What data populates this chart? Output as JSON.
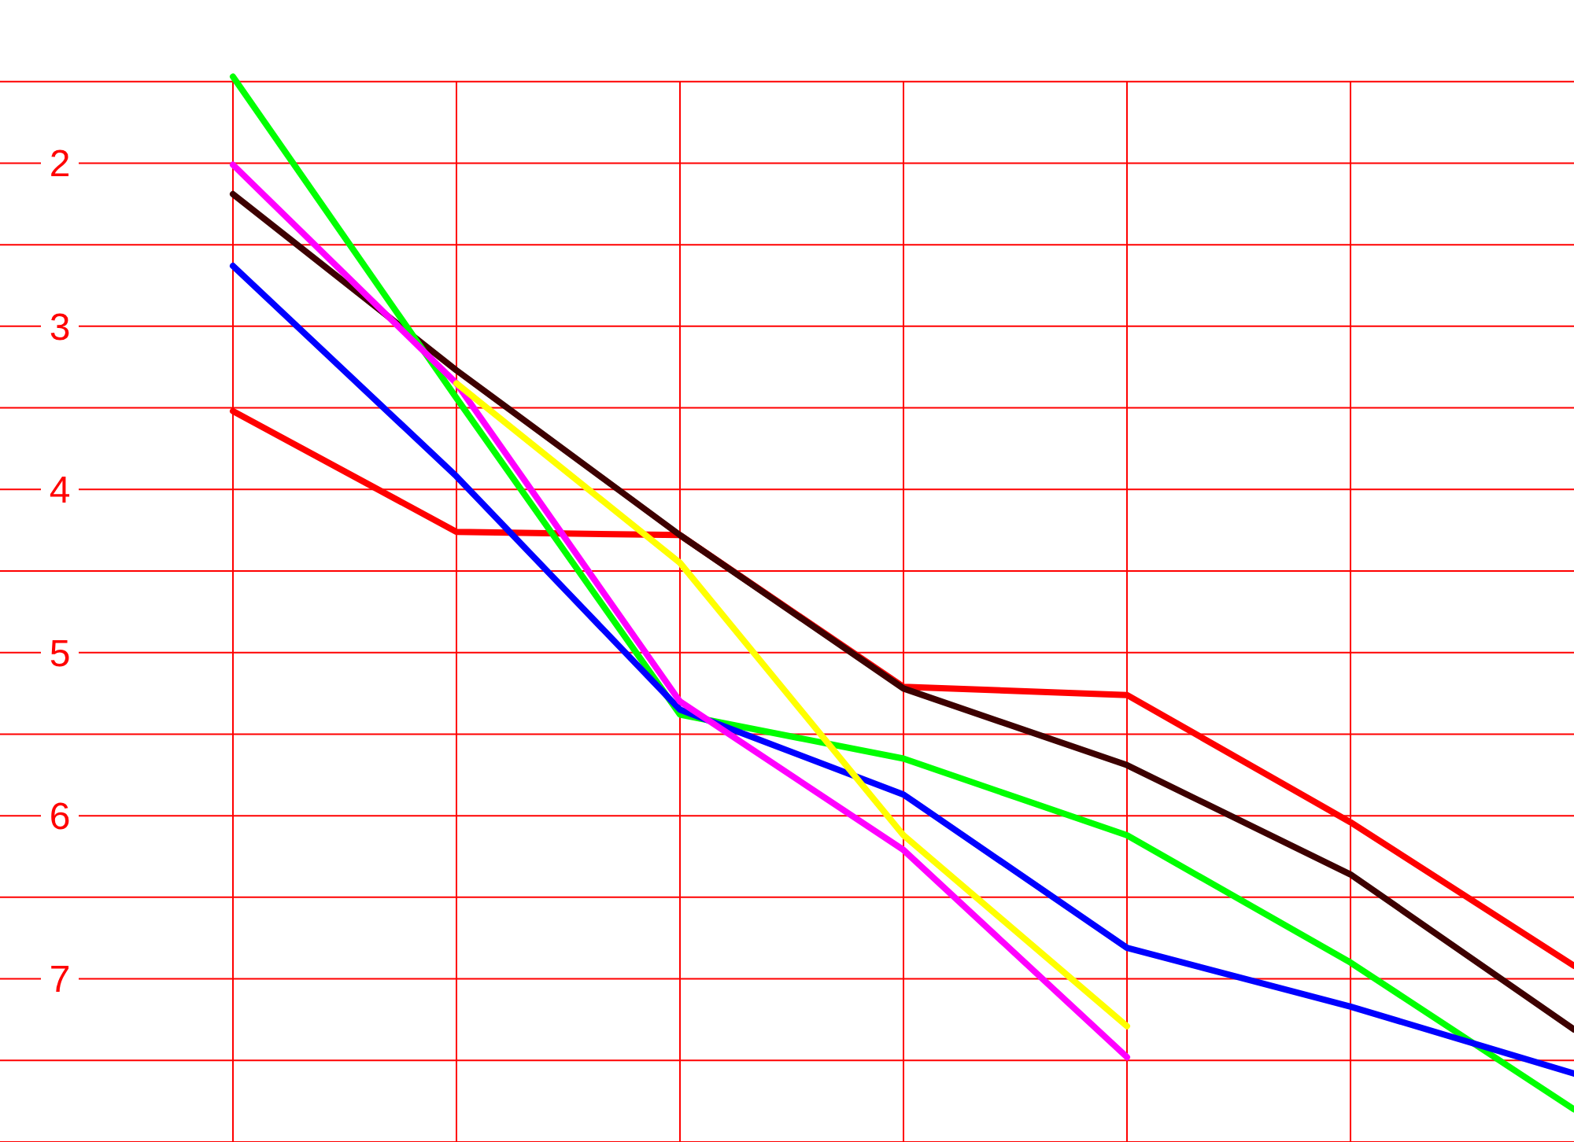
{
  "chart_data": {
    "type": "line",
    "categories": [
      null,
      null,
      null,
      null,
      null,
      null,
      null
    ],
    "ylim": [
      8,
      1
    ],
    "yticks": [
      {
        "value": 1.5,
        "label": null
      },
      2,
      {
        "value": 2.5,
        "label": null
      },
      3,
      {
        "value": 3.5,
        "label": null
      },
      4,
      {
        "value": 4.5,
        "label": null
      },
      5,
      {
        "value": 5.5,
        "label": null
      },
      6,
      {
        "value": 6.5,
        "label": null
      },
      7,
      {
        "value": 7.5,
        "label": null
      },
      {
        "value": 8,
        "label": null
      }
    ],
    "grid": true,
    "marker": "none",
    "line_style": "solid",
    "series": [
      {
        "color": "#ff0000",
        "values": [
          3.52,
          4.26,
          4.28,
          5.21,
          5.26,
          6.04,
          6.92
        ]
      },
      {
        "color": "#3d0000",
        "values": [
          2.19,
          3.27,
          4.28,
          5.22,
          5.69,
          6.36,
          7.31
        ]
      },
      {
        "color": "#00ff00",
        "values": [
          1.47,
          3.44,
          5.38,
          5.65,
          6.12,
          6.9,
          7.8
        ]
      },
      {
        "color": "#0000ff",
        "values": [
          2.63,
          3.92,
          5.35,
          5.87,
          6.81,
          7.17,
          7.58
        ]
      },
      {
        "color": "#ff00ff",
        "values": [
          2.01,
          3.35,
          5.3,
          6.21,
          7.48,
          null,
          null
        ]
      },
      {
        "color": "#ffff00",
        "values": [
          null,
          3.35,
          4.45,
          6.12,
          7.29,
          null,
          null
        ]
      }
    ]
  }
}
